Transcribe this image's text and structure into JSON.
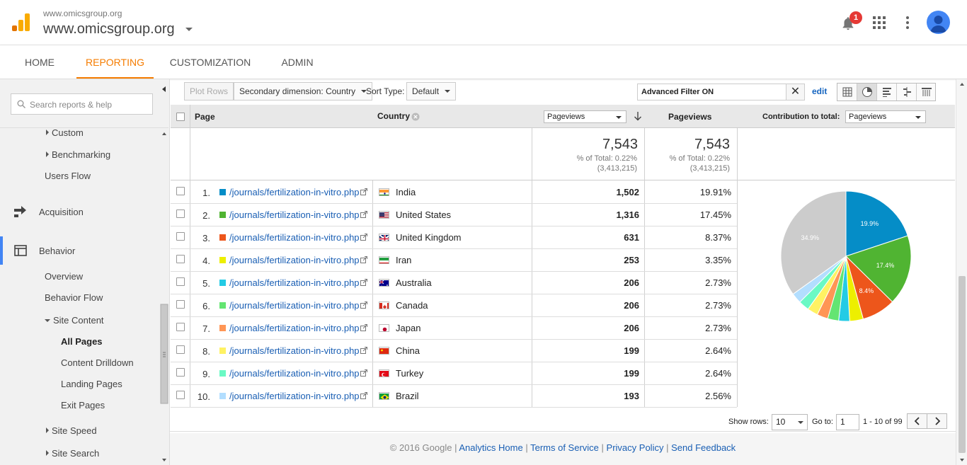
{
  "header": {
    "site_small": "www.omicsgroup.org",
    "site_big": "www.omicsgroup.org",
    "notification_count": "1",
    "icons": [
      "analytics-logo-icon",
      "bell-icon",
      "apps-grid-icon",
      "more-vert-icon",
      "account-avatar-icon"
    ]
  },
  "nav": {
    "tabs": [
      "HOME",
      "REPORTING",
      "CUSTOMIZATION",
      "ADMIN"
    ],
    "active": "REPORTING",
    "accent": "#f57c00"
  },
  "sidebar": {
    "search_placeholder": "Search reports & help",
    "custom": "Custom",
    "benchmarking": "Benchmarking",
    "users_flow": "Users Flow",
    "acquisition": "Acquisition",
    "behavior": "Behavior",
    "overview": "Overview",
    "behavior_flow": "Behavior Flow",
    "site_content": "Site Content",
    "all_pages": "All Pages",
    "content_drilldown": "Content Drilldown",
    "landing_pages": "Landing Pages",
    "exit_pages": "Exit Pages",
    "site_speed": "Site Speed",
    "site_search": "Site Search"
  },
  "toolbar": {
    "plot_rows": "Plot Rows",
    "secondary_dimension": "Secondary dimension: Country",
    "sort_type_label": "Sort Type:",
    "sort_type_value": "Default",
    "filter_text": "Advanced Filter ON",
    "edit": "edit"
  },
  "table": {
    "col_page": "Page",
    "col_country": "Country",
    "metric_select": "Pageviews",
    "col_pageviews": "Pageviews",
    "contribution_label": "Contribution to total:",
    "contribution_select": "Pageviews",
    "totals": {
      "value1": "7,543",
      "pct1": "% of Total: 0.22%",
      "base1": "(3,413,215)",
      "value2": "7,543",
      "pct2": "% of Total: 0.22%",
      "base2": "(3,413,215)"
    },
    "rows": [
      {
        "num": "1.",
        "page": "/journals/fertilization-in-vitro.php",
        "country": "India",
        "pv": "1,502",
        "pct": "19.91%",
        "color": "#058dc7",
        "flag": "india"
      },
      {
        "num": "2.",
        "page": "/journals/fertilization-in-vitro.php",
        "country": "United States",
        "pv": "1,316",
        "pct": "17.45%",
        "color": "#50b432",
        "flag": "us"
      },
      {
        "num": "3.",
        "page": "/journals/fertilization-in-vitro.php",
        "country": "United Kingdom",
        "pv": "631",
        "pct": "8.37%",
        "color": "#ed561b",
        "flag": "uk"
      },
      {
        "num": "4.",
        "page": "/journals/fertilization-in-vitro.php",
        "country": "Iran",
        "pv": "253",
        "pct": "3.35%",
        "color": "#edef00",
        "flag": "iran"
      },
      {
        "num": "5.",
        "page": "/journals/fertilization-in-vitro.php",
        "country": "Australia",
        "pv": "206",
        "pct": "2.73%",
        "color": "#24cbe5",
        "flag": "australia"
      },
      {
        "num": "6.",
        "page": "/journals/fertilization-in-vitro.php",
        "country": "Canada",
        "pv": "206",
        "pct": "2.73%",
        "color": "#64e572",
        "flag": "canada"
      },
      {
        "num": "7.",
        "page": "/journals/fertilization-in-vitro.php",
        "country": "Japan",
        "pv": "206",
        "pct": "2.73%",
        "color": "#ff9655",
        "flag": "japan"
      },
      {
        "num": "8.",
        "page": "/journals/fertilization-in-vitro.php",
        "country": "China",
        "pv": "199",
        "pct": "2.64%",
        "color": "#fff263",
        "flag": "china"
      },
      {
        "num": "9.",
        "page": "/journals/fertilization-in-vitro.php",
        "country": "Turkey",
        "pv": "199",
        "pct": "2.64%",
        "color": "#6af9c4",
        "flag": "turkey"
      },
      {
        "num": "10.",
        "page": "/journals/fertilization-in-vitro.php",
        "country": "Brazil",
        "pv": "193",
        "pct": "2.56%",
        "color": "#b2deff",
        "flag": "brazil"
      }
    ]
  },
  "chart_data": {
    "type": "pie",
    "categories": [
      "India",
      "United States",
      "United Kingdom",
      "Iran",
      "Australia",
      "Canada",
      "Japan",
      "China",
      "Turkey",
      "Brazil",
      "(other)"
    ],
    "values": [
      19.91,
      17.45,
      8.37,
      3.35,
      2.73,
      2.73,
      2.73,
      2.64,
      2.64,
      2.56,
      34.9
    ],
    "colors": [
      "#058dc7",
      "#50b432",
      "#ed561b",
      "#edef00",
      "#24cbe5",
      "#64e572",
      "#ff9655",
      "#fff263",
      "#6af9c4",
      "#b2deff",
      "#cccccc"
    ],
    "slice_labels": [
      "19.9%",
      "17.4%",
      "8.4%",
      "",
      "",
      "",
      "",
      "",
      "",
      "",
      "34.9%"
    ]
  },
  "pager": {
    "show_rows_label": "Show rows:",
    "show_rows_value": "10",
    "goto_label": "Go to:",
    "goto_value": "1",
    "range": "1 - 10 of 99"
  },
  "footer": {
    "copyright": "© 2016 Google",
    "sep": "|",
    "analytics_home": "Analytics Home",
    "terms": "Terms of Service",
    "privacy": "Privacy Policy",
    "feedback": "Send Feedback"
  }
}
